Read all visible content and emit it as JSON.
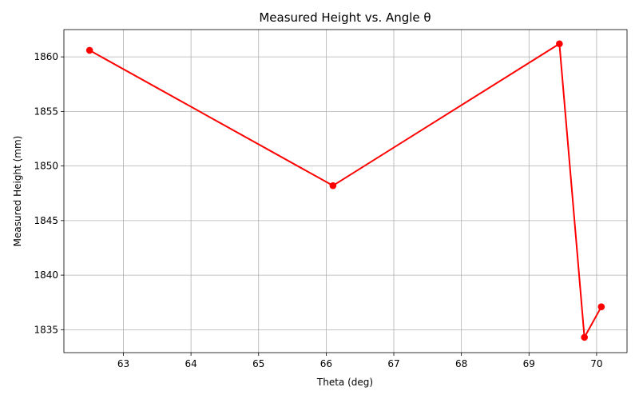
{
  "chart_data": {
    "type": "line",
    "title": "Measured Height vs. Angle θ",
    "xlabel": "Theta (deg)",
    "ylabel": "Measured Height (mm)",
    "x": [
      62.5,
      66.1,
      69.45,
      69.82,
      70.07
    ],
    "series": [
      {
        "values": [
          1860.6,
          1848.2,
          1861.2,
          1834.3,
          1837.1
        ],
        "color": "#ff0000",
        "marker": "circle"
      }
    ],
    "xlim": [
      62.12,
      70.45
    ],
    "ylim": [
      1832.9,
      1862.5
    ],
    "xticks": [
      "63",
      "64",
      "65",
      "66",
      "67",
      "68",
      "69",
      "70"
    ],
    "yticks": [
      "1835",
      "1840",
      "1845",
      "1850",
      "1855",
      "1860"
    ],
    "grid": true,
    "legend": "none"
  }
}
